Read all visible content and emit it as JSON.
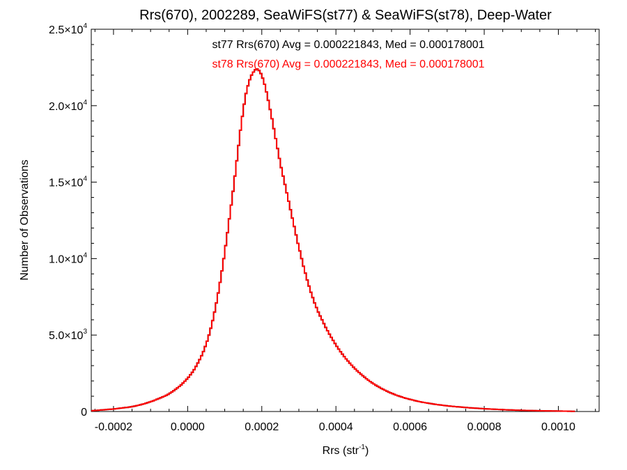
{
  "chart_data": {
    "type": "histogram",
    "title": "Rrs(670), 2002289, SeaWiFS(st77) & SeaWiFS(st78), Deep-Water",
    "xlabel": {
      "base": "Rrs (str",
      "sup": "-1",
      "end": ")"
    },
    "ylabel": "Number of Observations",
    "xlim": [
      -0.00026,
      0.00111
    ],
    "ylim": [
      0,
      25000
    ],
    "x_ticks": [
      {
        "value": -0.0002,
        "label": "-0.0002"
      },
      {
        "value": 0.0,
        "label": "0.0000"
      },
      {
        "value": 0.0002,
        "label": "0.0002"
      },
      {
        "value": 0.0004,
        "label": "0.0004"
      },
      {
        "value": 0.0006,
        "label": "0.0006"
      },
      {
        "value": 0.0008,
        "label": "0.0008"
      },
      {
        "value": 0.001,
        "label": "0.0010"
      }
    ],
    "y_ticks": [
      {
        "value": 0,
        "base": "0",
        "sup": ""
      },
      {
        "value": 5000,
        "base": "5.0×10",
        "sup": "3"
      },
      {
        "value": 10000,
        "base": "1.0×10",
        "sup": "4"
      },
      {
        "value": 15000,
        "base": "1.5×10",
        "sup": "4"
      },
      {
        "value": 20000,
        "base": "2.0×10",
        "sup": "4"
      },
      {
        "value": 25000,
        "base": "2.5×10",
        "sup": "4"
      }
    ],
    "annotations": [
      {
        "text": "st77 Rrs(670) Avg = 0.000221843, Med = 0.000178001",
        "color": "#000000"
      },
      {
        "text": "st78 Rrs(670) Avg = 0.000221843, Med = 0.000178001",
        "color": "#ff0000"
      }
    ],
    "series": [
      {
        "name": "st77",
        "color": "#000000",
        "bin_start": -0.00026,
        "bin_width": 5e-06,
        "counts": [
          50,
          60,
          70,
          80,
          90,
          100,
          110,
          120,
          130,
          140,
          150,
          160,
          170,
          185,
          200,
          215,
          230,
          245,
          260,
          270,
          290,
          310,
          330,
          350,
          380,
          410,
          440,
          470,
          500,
          540,
          580,
          620,
          660,
          700,
          750,
          800,
          850,
          900,
          950,
          1000,
          1060,
          1120,
          1200,
          1280,
          1360,
          1450,
          1540,
          1640,
          1740,
          1860,
          1980,
          2110,
          2240,
          2400,
          2560,
          2740,
          2950,
          3170,
          3400,
          3650,
          3920,
          4250,
          4600,
          5000,
          5450,
          5950,
          6500,
          7100,
          7750,
          8450,
          9200,
          10000,
          10850,
          11700,
          12600,
          13500,
          14400,
          15400,
          16400,
          17400,
          18400,
          19300,
          20100,
          20800,
          21300,
          21700,
          22000,
          22200,
          22350,
          22400,
          22300,
          22100,
          21800,
          21400,
          20900,
          20350,
          19750,
          19150,
          18500,
          17850,
          17200,
          16550,
          15950,
          15400,
          14850,
          14300,
          13750,
          13200,
          12650,
          12100,
          11550,
          11000,
          10500,
          10000,
          9500,
          9050,
          8600,
          8200,
          7800,
          7450,
          7100,
          6800,
          6500,
          6250,
          6000,
          5750,
          5500,
          5280,
          5060,
          4850,
          4650,
          4450,
          4260,
          4080,
          3910,
          3750,
          3590,
          3440,
          3300,
          3160,
          3030,
          2900,
          2780,
          2660,
          2550,
          2440,
          2340,
          2240,
          2140,
          2050,
          1960,
          1880,
          1800,
          1720,
          1650,
          1580,
          1510,
          1450,
          1390,
          1330,
          1270,
          1220,
          1170,
          1120,
          1070,
          1030,
          990,
          950,
          910,
          870,
          840,
          810,
          780,
          750,
          720,
          690,
          660,
          640,
          610,
          590,
          570,
          550,
          530,
          510,
          490,
          470,
          455,
          440,
          425,
          410,
          395,
          380,
          365,
          350,
          340,
          330,
          320,
          310,
          300,
          290,
          280,
          270,
          260,
          250,
          240,
          232,
          224,
          216,
          208,
          200,
          192,
          185,
          178,
          171,
          164,
          158,
          152,
          146,
          140,
          135,
          130,
          125,
          120,
          115,
          110,
          105,
          100,
          96,
          92,
          88,
          84,
          80,
          76,
          73,
          70,
          67,
          64,
          61,
          58,
          55,
          52,
          50,
          48,
          46,
          44,
          42,
          40,
          38,
          36,
          34,
          32,
          30,
          28,
          26,
          24,
          22,
          20,
          18,
          16,
          14,
          12
        ]
      },
      {
        "name": "st78",
        "color": "#ff0000",
        "bin_start": -0.00026,
        "bin_width": 5e-06,
        "counts": [
          50,
          60,
          70,
          80,
          90,
          100,
          110,
          120,
          130,
          140,
          150,
          160,
          170,
          185,
          200,
          215,
          230,
          245,
          260,
          270,
          290,
          310,
          330,
          350,
          380,
          410,
          440,
          470,
          500,
          540,
          580,
          620,
          660,
          700,
          750,
          800,
          850,
          900,
          950,
          1000,
          1060,
          1120,
          1200,
          1280,
          1360,
          1450,
          1540,
          1640,
          1740,
          1860,
          1980,
          2110,
          2240,
          2400,
          2560,
          2740,
          2950,
          3170,
          3400,
          3650,
          3920,
          4250,
          4600,
          5000,
          5450,
          5950,
          6500,
          7100,
          7750,
          8450,
          9200,
          10000,
          10850,
          11700,
          12600,
          13500,
          14400,
          15400,
          16400,
          17400,
          18400,
          19300,
          20100,
          20800,
          21300,
          21700,
          22000,
          22200,
          22350,
          22400,
          22300,
          22100,
          21800,
          21400,
          20900,
          20350,
          19750,
          19150,
          18500,
          17850,
          17200,
          16550,
          15950,
          15400,
          14850,
          14300,
          13750,
          13200,
          12650,
          12100,
          11550,
          11000,
          10500,
          10000,
          9500,
          9050,
          8600,
          8200,
          7800,
          7450,
          7100,
          6800,
          6500,
          6250,
          6000,
          5750,
          5500,
          5280,
          5060,
          4850,
          4650,
          4450,
          4260,
          4080,
          3910,
          3750,
          3590,
          3440,
          3300,
          3160,
          3030,
          2900,
          2780,
          2660,
          2550,
          2440,
          2340,
          2240,
          2140,
          2050,
          1960,
          1880,
          1800,
          1720,
          1650,
          1580,
          1510,
          1450,
          1390,
          1330,
          1270,
          1220,
          1170,
          1120,
          1070,
          1030,
          990,
          950,
          910,
          870,
          840,
          810,
          780,
          750,
          720,
          690,
          660,
          640,
          610,
          590,
          570,
          550,
          530,
          510,
          490,
          470,
          455,
          440,
          425,
          410,
          395,
          380,
          365,
          350,
          340,
          330,
          320,
          310,
          300,
          290,
          280,
          270,
          260,
          250,
          240,
          232,
          224,
          216,
          208,
          200,
          192,
          185,
          178,
          171,
          164,
          158,
          152,
          146,
          140,
          135,
          130,
          125,
          120,
          115,
          110,
          105,
          100,
          96,
          92,
          88,
          84,
          80,
          76,
          73,
          70,
          67,
          64,
          61,
          58,
          55,
          52,
          50,
          48,
          46,
          44,
          42,
          40,
          38,
          36,
          34,
          32,
          30,
          28,
          26,
          24,
          22,
          20,
          18,
          16,
          14,
          12
        ]
      }
    ]
  }
}
